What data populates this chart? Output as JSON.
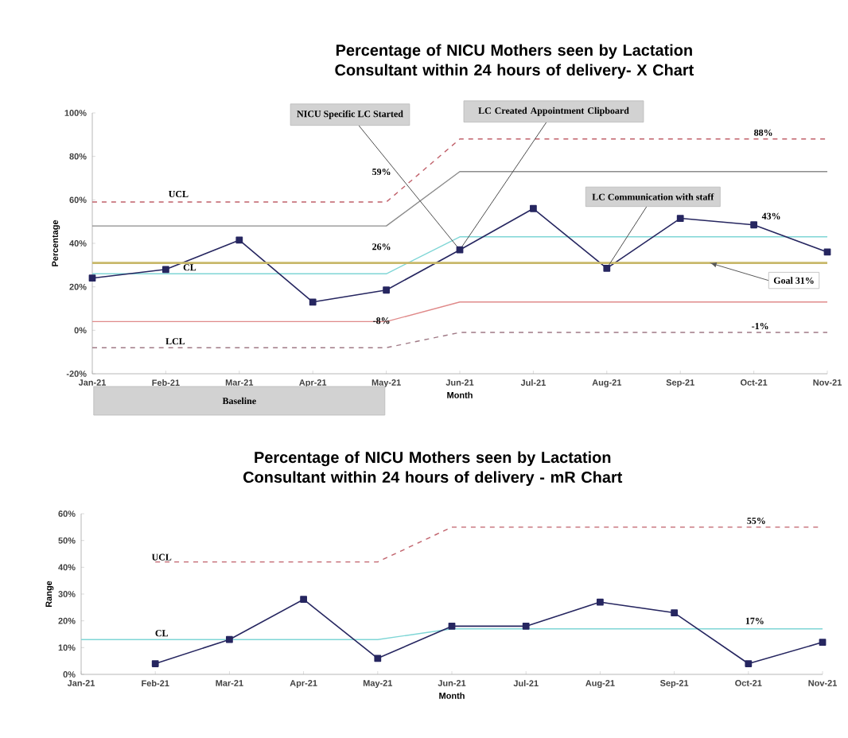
{
  "chart_data": [
    {
      "type": "line",
      "title": "Percentage of NICU Mothers seen by Lactation Consultant within 24 hours of delivery- X Chart",
      "xlabel": "Month",
      "ylabel": "Percentage",
      "categories": [
        "Jan-21",
        "Feb-21",
        "Mar-21",
        "Apr-21",
        "May-21",
        "Jun-21",
        "Jul-21",
        "Aug-21",
        "Sep-21",
        "Oct-21",
        "Nov-21"
      ],
      "ylim": [
        -20,
        100
      ],
      "yticks": [
        {
          "value": -20,
          "label": "-20%"
        },
        {
          "value": 0,
          "label": "0%"
        },
        {
          "value": 20,
          "label": "20%"
        },
        {
          "value": 40,
          "label": "40%"
        },
        {
          "value": 60,
          "label": "60%"
        },
        {
          "value": 80,
          "label": "80%"
        },
        {
          "value": 100,
          "label": "100%"
        }
      ],
      "series": [
        {
          "color": "#c0606a",
          "line_style": "dashed",
          "marker": "none",
          "values": [
            59,
            59,
            59,
            59,
            59,
            88,
            88,
            88,
            88,
            88,
            88
          ]
        },
        {
          "color": "#8c8c8c",
          "line_style": "solid",
          "marker": "none",
          "values": [
            48,
            48,
            48,
            48,
            48,
            73,
            73,
            73,
            73,
            73,
            73
          ]
        },
        {
          "color": "#7fd6d6",
          "line_style": "solid",
          "marker": "none",
          "values": [
            26,
            26,
            26,
            26,
            26,
            43,
            43,
            43,
            43,
            43,
            43
          ]
        },
        {
          "color": "#e08a8a",
          "line_style": "solid",
          "marker": "none",
          "values": [
            4,
            4,
            4,
            4,
            4,
            13,
            13,
            13,
            13,
            13,
            13
          ]
        },
        {
          "color": "#a07a86",
          "line_style": "dashed",
          "marker": "none",
          "values": [
            -8,
            -8,
            -8,
            -8,
            -8,
            -1,
            -1,
            -1,
            -1,
            -1,
            -1
          ]
        },
        {
          "color": "#262660",
          "line_style": "solid",
          "marker": "square",
          "values": [
            24,
            28,
            41.5,
            13,
            18.5,
            37,
            56,
            28.5,
            51.5,
            48.5,
            36
          ]
        }
      ],
      "ref_lines": [
        {
          "axis": "y",
          "value": 31,
          "label": "Goal 31%",
          "color": "#c8b86a"
        }
      ],
      "annotations": [
        {
          "text": "UCL",
          "x": "Feb-21",
          "y": 59
        },
        {
          "text": "CL",
          "x": "Feb-21",
          "y": 26
        },
        {
          "text": "LCL",
          "x": "Feb-21",
          "y": -8
        },
        {
          "text": "59%",
          "x": "May-21",
          "y": 59
        },
        {
          "text": "26%",
          "x": "May-21",
          "y": 26
        },
        {
          "text": "-8%",
          "x": "May-21",
          "y": -8
        },
        {
          "text": "88%",
          "x": "Oct-21",
          "y": 88
        },
        {
          "text": "43%",
          "x": "Oct-21",
          "y": 43
        },
        {
          "text": "-1%",
          "x": "Oct-21",
          "y": -1
        },
        {
          "text": "NICU Specific LC Started",
          "x": "Jun-21",
          "y": 37
        },
        {
          "text": "LC Created Appointment Clipboard",
          "x": "Jun-21",
          "y": 37
        },
        {
          "text": "LC Communication with staff",
          "x": "Aug-21",
          "y": 28.5
        },
        "Baseline"
      ]
    },
    {
      "type": "line",
      "title": "Percentage of NICU Mothers seen by Lactation Consultant within 24 hours of delivery - mR Chart",
      "xlabel": "Month",
      "ylabel": "Range",
      "categories": [
        "Jan-21",
        "Feb-21",
        "Mar-21",
        "Apr-21",
        "May-21",
        "Jun-21",
        "Jul-21",
        "Aug-21",
        "Sep-21",
        "Oct-21",
        "Nov-21"
      ],
      "ylim": [
        0,
        60
      ],
      "yticks": [
        {
          "value": 0,
          "label": "0%"
        },
        {
          "value": 10,
          "label": "10%"
        },
        {
          "value": 20,
          "label": "20%"
        },
        {
          "value": 30,
          "label": "30%"
        },
        {
          "value": 40,
          "label": "40%"
        },
        {
          "value": 50,
          "label": "50%"
        },
        {
          "value": 60,
          "label": "60%"
        }
      ],
      "series": [
        {
          "color": "#c0606a",
          "line_style": "dashed",
          "marker": "none",
          "values": [
            null,
            42,
            42,
            42,
            42,
            55,
            55,
            55,
            55,
            55,
            55
          ]
        },
        {
          "color": "#7fd6d6",
          "line_style": "solid",
          "marker": "none",
          "values": [
            13,
            13,
            13,
            13,
            13,
            17,
            17,
            17,
            17,
            17,
            17
          ]
        },
        {
          "color": "#262660",
          "line_style": "solid",
          "marker": "square",
          "values": [
            null,
            4,
            13,
            28,
            6,
            18,
            18,
            27,
            23,
            4,
            12
          ]
        }
      ],
      "annotations": [
        {
          "text": "UCL",
          "x": "Feb-21",
          "y": 42
        },
        {
          "text": "CL",
          "x": "Feb-21",
          "y": 13
        },
        {
          "text": "55%",
          "x": "Oct-21",
          "y": 55
        },
        {
          "text": "17%",
          "x": "Oct-21",
          "y": 17
        }
      ]
    }
  ]
}
